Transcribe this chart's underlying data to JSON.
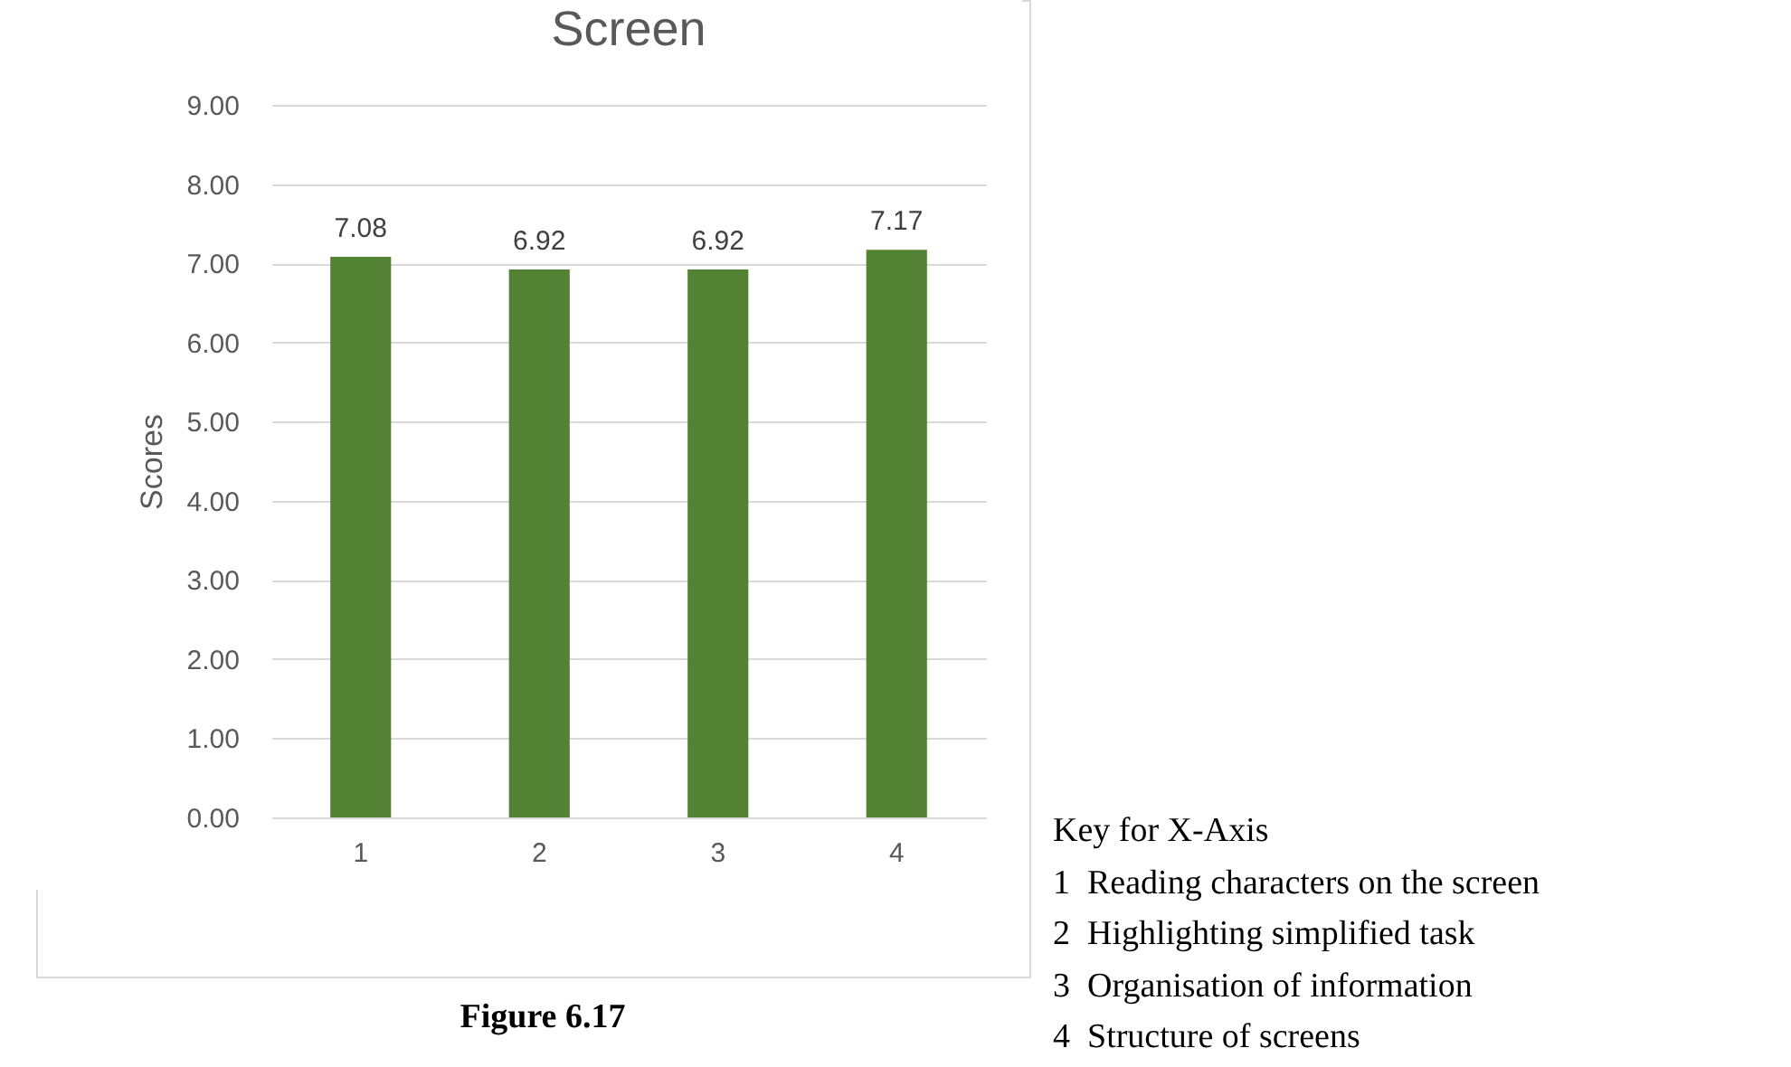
{
  "chart_data": {
    "type": "bar",
    "title": "Screen",
    "ylabel": "Scores",
    "categories": [
      "1",
      "2",
      "3",
      "4"
    ],
    "values": [
      7.08,
      6.92,
      6.92,
      7.17
    ],
    "color": "#548235",
    "ylim": [
      0,
      9
    ],
    "yticks": [
      {
        "value": 0,
        "label": "0.00"
      },
      {
        "value": 1,
        "label": "1.00"
      },
      {
        "value": 2,
        "label": "2.00"
      },
      {
        "value": 3,
        "label": "3.00"
      },
      {
        "value": 4,
        "label": "4.00"
      },
      {
        "value": 5,
        "label": "5.00"
      },
      {
        "value": 6,
        "label": "6.00"
      },
      {
        "value": 7,
        "label": "7.00"
      },
      {
        "value": 8,
        "label": "8.00"
      },
      {
        "value": 9,
        "label": "9.00"
      }
    ],
    "grid": "y",
    "data_labels": true,
    "annotations": [
      "Figure 6.17",
      "Key for X-Axis",
      "1  Reading characters on the screen",
      "2  Highlighting simplified task",
      "3  Organisation of information",
      "4  Structure of screens"
    ]
  }
}
